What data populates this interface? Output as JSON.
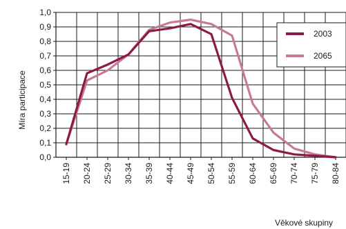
{
  "chart_data": {
    "type": "line",
    "ylabel": "Míra participace",
    "xlabel": "Věkové skupiny",
    "ylim": [
      0,
      1
    ],
    "y_ticks": [
      "0,0",
      "0,1",
      "0,2",
      "0,3",
      "0,4",
      "0,5",
      "0,6",
      "0,7",
      "0,8",
      "0,9",
      "1,0"
    ],
    "categories": [
      "15-19",
      "20-24",
      "25-29",
      "30-34",
      "35-39",
      "40-44",
      "45-49",
      "50-54",
      "55-59",
      "60-64",
      "65-69",
      "70-74",
      "75-79",
      "80-84"
    ],
    "grid": true,
    "legend_position": "top-right",
    "series": [
      {
        "name": "2003",
        "color": "#8b1a4a",
        "values": [
          0.09,
          0.58,
          0.64,
          0.71,
          0.87,
          0.89,
          0.92,
          0.85,
          0.41,
          0.13,
          0.05,
          0.02,
          0.01,
          0.0
        ]
      },
      {
        "name": "2065",
        "color": "#c77a95",
        "values": [
          0.09,
          0.53,
          0.6,
          0.71,
          0.88,
          0.93,
          0.95,
          0.92,
          0.84,
          0.37,
          0.17,
          0.06,
          0.02,
          0.0
        ]
      }
    ]
  }
}
